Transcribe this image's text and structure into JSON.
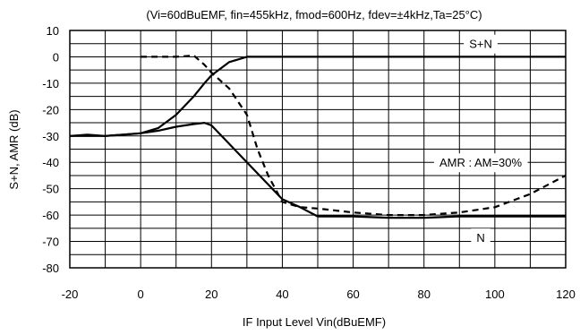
{
  "chart_data": {
    "type": "line",
    "title": "(Vi=60dBuEMF, fin=455kHz, fmod=600Hz, fdev=±4kHz,Ta=25°C)",
    "xlabel": "IF Input Level Vin(dBuEMF)",
    "ylabel": "S+N, AMR (dB)",
    "xlim": [
      -20,
      120
    ],
    "ylim": [
      -80,
      10
    ],
    "xticks": [
      -20,
      0,
      20,
      40,
      60,
      80,
      100,
      120
    ],
    "yticks": [
      10,
      0,
      -10,
      -20,
      -30,
      -40,
      -50,
      -60,
      -70,
      -80
    ],
    "xtick_step": 10,
    "ytick_step": 5,
    "grid": true,
    "annotations": [
      {
        "text": "S+N",
        "x": 96,
        "y": 5
      },
      {
        "text": "AMR : AM=30%",
        "x": 96,
        "y": -40
      },
      {
        "text": "N",
        "x": 96,
        "y": -68.5
      }
    ],
    "series": [
      {
        "name": "S+N",
        "style": "solid",
        "x": [
          -20,
          -15,
          -10,
          -5,
          0,
          5,
          10,
          15,
          18,
          20,
          25,
          30,
          40,
          60,
          80,
          100,
          120
        ],
        "y": [
          -30,
          -29.5,
          -30,
          -29.5,
          -29,
          -27,
          -22,
          -15,
          -10,
          -7,
          -2,
          0,
          0,
          0,
          0,
          0,
          0
        ]
      },
      {
        "name": "AMR",
        "style": "dashed",
        "x": [
          0,
          5,
          10,
          15,
          18,
          20,
          25,
          30,
          33,
          36,
          38,
          40,
          45,
          50,
          60,
          70,
          80,
          90,
          100,
          110,
          120
        ],
        "y": [
          0,
          0,
          0,
          0.5,
          -3,
          -6,
          -12,
          -22,
          -35,
          -45,
          -50,
          -55,
          -57,
          -57.5,
          -59,
          -60,
          -60,
          -59,
          -57,
          -52,
          -45
        ]
      },
      {
        "name": "N",
        "style": "solid",
        "x": [
          -20,
          -10,
          0,
          5,
          10,
          15,
          18,
          20,
          25,
          30,
          35,
          40,
          45,
          50,
          60,
          70,
          80,
          90,
          95,
          100,
          110,
          120
        ],
        "y": [
          -30,
          -30,
          -29,
          -28,
          -26.5,
          -25.5,
          -25,
          -26,
          -33,
          -40,
          -47,
          -54,
          -57,
          -60.5,
          -60.5,
          -61,
          -61,
          -60.5,
          -60.5,
          -60.5,
          -60.5,
          -60.5
        ]
      }
    ]
  }
}
